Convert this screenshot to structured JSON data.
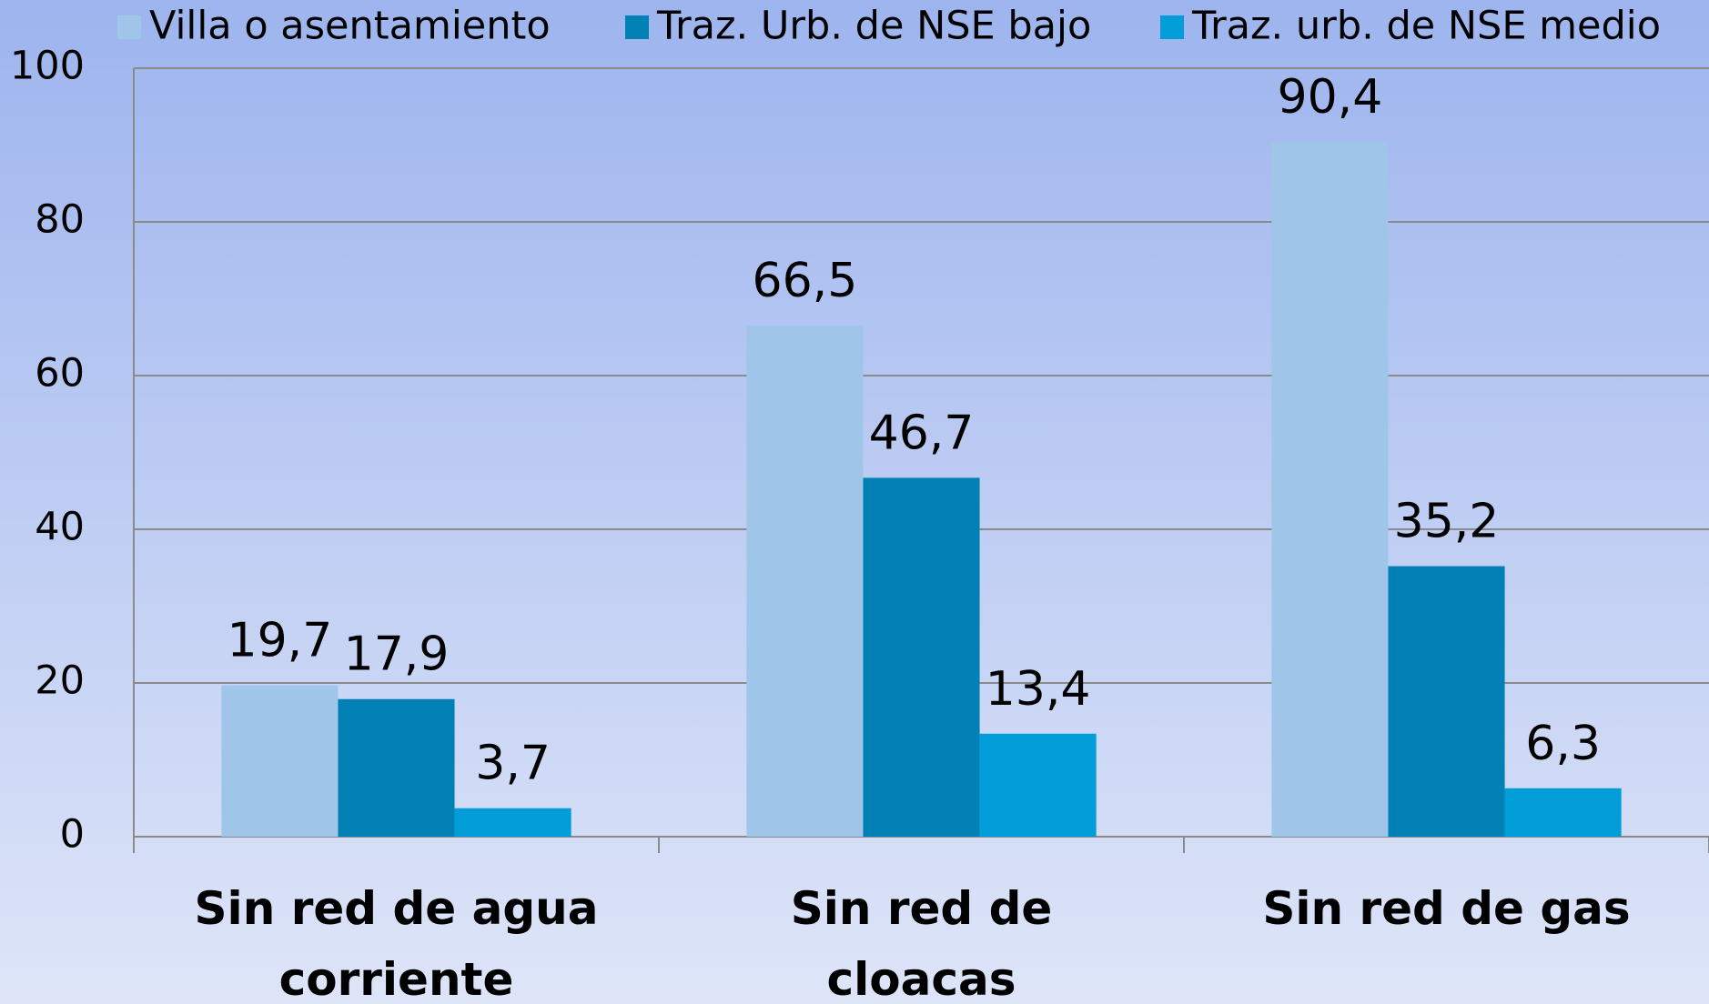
{
  "chart_data": {
    "type": "bar",
    "categories": [
      "Sin red de agua\ncorriente",
      "Sin red de\ncloacas",
      "Sin red de gas"
    ],
    "series": [
      {
        "name": "Villa o asentamiento",
        "color": "#9fc5e8",
        "values": [
          19.7,
          66.5,
          90.4
        ],
        "value_labels": [
          "19,7",
          "66,5",
          "90,4"
        ]
      },
      {
        "name": "Traz. Urb. de NSE bajo",
        "color": "#0080b4",
        "values": [
          17.9,
          46.7,
          35.2
        ],
        "value_labels": [
          "17,9",
          "46,7",
          "35,2"
        ]
      },
      {
        "name": "Traz. urb. de NSE medio",
        "color": "#009dd9",
        "values": [
          3.7,
          13.4,
          6.3
        ],
        "value_labels": [
          "3,7",
          "13,4",
          "6,3"
        ]
      }
    ],
    "ylim": [
      0,
      100
    ],
    "yticks": [
      0,
      20,
      40,
      60,
      80,
      100
    ],
    "grid": true,
    "legend": "top"
  }
}
